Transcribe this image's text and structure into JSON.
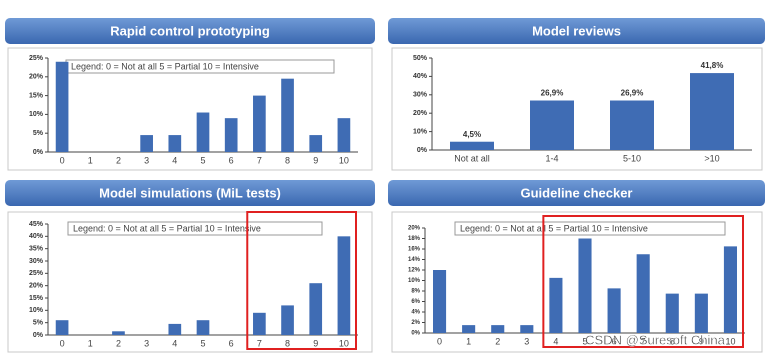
{
  "chart_data": [
    {
      "type": "bar",
      "title": "Rapid control prototyping",
      "annotation": "Legend: 0 = Not at all  5 = Partial  10 = Intensive",
      "categories": [
        "0",
        "1",
        "2",
        "3",
        "4",
        "5",
        "6",
        "7",
        "8",
        "9",
        "10"
      ],
      "values": [
        24,
        0,
        0,
        4.5,
        4.5,
        10.5,
        9,
        15,
        19.5,
        4.5,
        9
      ],
      "color": "#3f6cb4",
      "ylim": [
        0,
        25
      ],
      "yticks": [
        {
          "value": 0,
          "label": "0%"
        },
        {
          "value": 5,
          "label": "5%"
        },
        {
          "value": 10,
          "label": "10%"
        },
        {
          "value": 15,
          "label": "15%"
        },
        {
          "value": 20,
          "label": "20%"
        },
        {
          "value": 25,
          "label": "25%"
        }
      ]
    },
    {
      "type": "bar",
      "title": "Model reviews",
      "categories": [
        "Not at all",
        "1-4",
        "5-10",
        ">10"
      ],
      "values": [
        4.5,
        26.9,
        26.9,
        41.8
      ],
      "value_labels": [
        "4,5%",
        "26,9%",
        "26,9%",
        "41,8%"
      ],
      "color": "#3f6cb4",
      "ylim": [
        0,
        50
      ],
      "yticks": [
        {
          "value": 0,
          "label": "0%"
        },
        {
          "value": 10,
          "label": "10%"
        },
        {
          "value": 20,
          "label": "20%"
        },
        {
          "value": 30,
          "label": "30%"
        },
        {
          "value": 40,
          "label": "40%"
        },
        {
          "value": 50,
          "label": "50%"
        }
      ]
    },
    {
      "type": "bar",
      "title": "Model simulations (MiL tests)",
      "annotation": "Legend: 0 = Not at all  5 = Partial  10 = Intensive",
      "categories": [
        "0",
        "1",
        "2",
        "3",
        "4",
        "5",
        "6",
        "7",
        "8",
        "9",
        "10"
      ],
      "values": [
        6,
        0,
        1.5,
        0,
        4.5,
        6,
        0,
        9,
        12,
        21,
        40
      ],
      "color": "#3f6cb4",
      "ylim": [
        0,
        45
      ],
      "yticks": [
        {
          "value": 0,
          "label": "0%"
        },
        {
          "value": 5,
          "label": "5%"
        },
        {
          "value": 10,
          "label": "10%"
        },
        {
          "value": 15,
          "label": "15%"
        },
        {
          "value": 20,
          "label": "20%"
        },
        {
          "value": 25,
          "label": "25%"
        },
        {
          "value": 30,
          "label": "30%"
        },
        {
          "value": 35,
          "label": "35%"
        },
        {
          "value": 40,
          "label": "40%"
        },
        {
          "value": 45,
          "label": "45%"
        }
      ]
    },
    {
      "type": "bar",
      "title": "Guideline checker",
      "annotation": "Legend: 0 = Not at all  5 = Partial  10 = Intensive",
      "categories": [
        "0",
        "1",
        "2",
        "3",
        "4",
        "5",
        "6",
        "7",
        "8",
        "9",
        "10"
      ],
      "values": [
        12,
        1.5,
        1.5,
        1.5,
        10.5,
        18,
        8.5,
        15,
        7.5,
        7.5,
        16.5
      ],
      "color": "#3f6cb4",
      "ylim": [
        0,
        20
      ],
      "yticks": [
        {
          "value": 0,
          "label": "0%"
        },
        {
          "value": 2,
          "label": "2%"
        },
        {
          "value": 4,
          "label": "4%"
        },
        {
          "value": 6,
          "label": "6%"
        },
        {
          "value": 8,
          "label": "8%"
        },
        {
          "value": 10,
          "label": "10%"
        },
        {
          "value": 12,
          "label": "12%"
        },
        {
          "value": 14,
          "label": "14%"
        },
        {
          "value": 16,
          "label": "16%"
        },
        {
          "value": 18,
          "label": "18%"
        },
        {
          "value": 20,
          "label": "20%"
        }
      ]
    }
  ],
  "watermark": "CSDN @Suresoft China"
}
